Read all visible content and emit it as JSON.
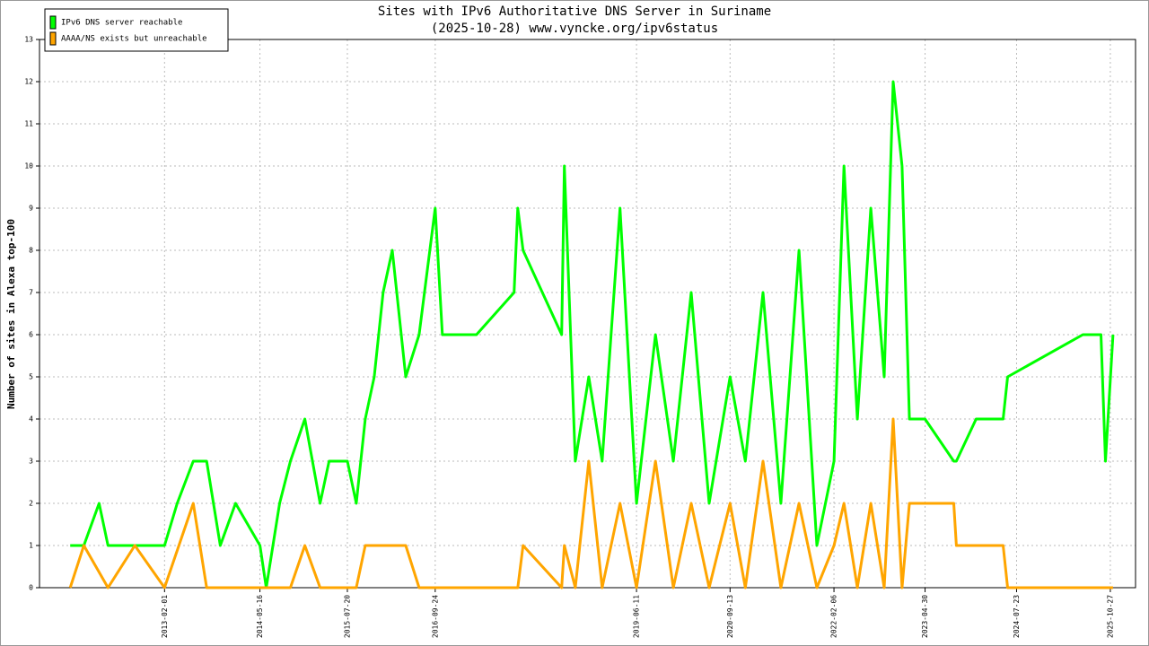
{
  "chart_data": {
    "type": "line",
    "title": "Sites with IPv6 Authoritative DNS Server in Suriname",
    "subtitle": "(2025-10-28) www.vyncke.org/ipv6status",
    "y_label": "Number of sites in Alexa top-100",
    "xlim": [
      "2011-05-28",
      "2026-02-28"
    ],
    "xticks": [
      "2013-02-01",
      "2014-05-16",
      "2015-07-20",
      "2016-09-24",
      "2019-06-11",
      "2020-09-13",
      "2022-02-06",
      "2023-04-30",
      "2024-07-23",
      "2025-10-27"
    ],
    "ylim": [
      0,
      13
    ],
    "yticks": [
      0,
      1,
      2,
      3,
      4,
      5,
      6,
      7,
      8,
      9,
      10,
      11,
      12,
      13
    ],
    "grid": true,
    "legend": "top-left",
    "series": [
      {
        "name": "IPv6 DNS server reachable",
        "color": "#00ff00",
        "x": [
          "2011-10-26",
          "2012-01-01",
          "2012-03-16",
          "2012-04-29",
          "2012-09-08",
          "2013-02-01",
          "2013-04-04",
          "2013-06-22",
          "2013-08-27",
          "2013-11-02",
          "2014-01-16",
          "2014-05-16",
          "2014-06-16",
          "2014-08-21",
          "2014-10-13",
          "2014-12-23",
          "2015-03-08",
          "2015-04-21",
          "2015-07-20",
          "2015-09-02",
          "2015-10-16",
          "2015-11-29",
          "2016-01-12",
          "2016-02-26",
          "2016-05-02",
          "2016-07-07",
          "2016-09-24",
          "2016-10-29",
          "2017-04-15",
          "2017-10-17",
          "2017-11-04",
          "2017-11-30",
          "2018-06-08",
          "2018-06-21",
          "2018-08-14",
          "2018-10-19",
          "2018-12-24",
          "2019-03-22",
          "2019-06-11",
          "2019-09-12",
          "2019-12-09",
          "2020-03-06",
          "2020-06-02",
          "2020-09-13",
          "2020-11-27",
          "2021-02-22",
          "2021-05-21",
          "2021-08-18",
          "2021-11-14",
          "2022-02-06",
          "2022-03-27",
          "2022-06-01",
          "2022-08-06",
          "2022-10-11",
          "2022-11-24",
          "2023-01-07",
          "2023-02-12",
          "2023-04-30",
          "2023-09-18",
          "2023-10-01",
          "2024-01-06",
          "2024-05-18",
          "2024-06-09",
          "2025-06-14",
          "2025-09-11",
          "2025-10-03",
          "2025-11-09"
        ],
        "values": [
          1,
          1,
          2,
          1,
          1,
          1,
          2,
          3,
          3,
          1,
          2,
          1,
          0,
          2,
          3,
          4,
          2,
          3,
          3,
          2,
          4,
          5,
          7,
          8,
          5,
          6,
          9,
          6,
          6,
          7,
          9,
          8,
          6,
          10,
          3,
          5,
          3,
          9,
          2,
          6,
          3,
          7,
          2,
          5,
          3,
          7,
          2,
          8,
          1,
          3,
          10,
          4,
          9,
          5,
          12,
          10,
          4,
          4,
          3,
          3,
          4,
          4,
          5,
          6,
          6,
          3,
          6
        ]
      },
      {
        "name": "AAAA/NS exists but unreachable",
        "color": "#ffa500",
        "x": [
          "2011-10-26",
          "2012-01-01",
          "2012-04-29",
          "2012-09-08",
          "2013-02-01",
          "2013-06-22",
          "2013-08-27",
          "2014-10-13",
          "2014-12-23",
          "2015-03-08",
          "2015-09-02",
          "2015-10-16",
          "2016-02-26",
          "2016-05-02",
          "2016-07-07",
          "2017-11-04",
          "2017-11-30",
          "2018-06-08",
          "2018-06-21",
          "2018-08-14",
          "2018-10-19",
          "2018-12-24",
          "2019-03-22",
          "2019-06-11",
          "2019-09-12",
          "2019-12-09",
          "2020-03-06",
          "2020-06-02",
          "2020-09-13",
          "2020-11-27",
          "2021-02-22",
          "2021-05-21",
          "2021-08-18",
          "2021-11-14",
          "2022-02-06",
          "2022-03-27",
          "2022-06-01",
          "2022-08-06",
          "2022-10-11",
          "2022-11-24",
          "2023-01-07",
          "2023-02-12",
          "2023-09-18",
          "2023-10-01",
          "2024-05-18",
          "2024-06-09",
          "2025-11-09"
        ],
        "values": [
          0,
          1,
          0,
          1,
          0,
          2,
          0,
          0,
          1,
          0,
          0,
          1,
          1,
          1,
          0,
          0,
          1,
          0,
          1,
          0,
          3,
          0,
          2,
          0,
          3,
          0,
          2,
          0,
          2,
          0,
          3,
          0,
          2,
          0,
          1,
          2,
          0,
          2,
          0,
          4,
          0,
          2,
          2,
          1,
          1,
          0,
          0
        ]
      }
    ]
  }
}
